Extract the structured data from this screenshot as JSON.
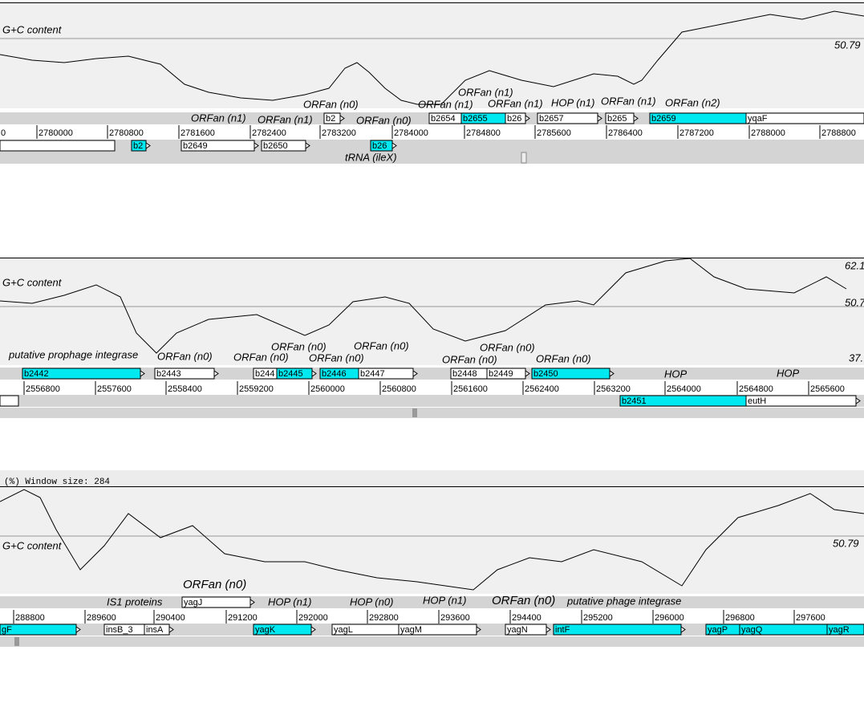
{
  "panels": [
    {
      "gc_label": "G+C content",
      "scale_labels": [
        "50.79"
      ],
      "annotations": [
        "ORFan (n1)",
        "ORFan (n1)",
        "ORFan (n0)",
        "ORFan (n0)",
        "ORFan (n1)",
        "ORFan (n1)",
        "ORFan (n1)",
        "HOP (n1)",
        "ORFan (n1)",
        "ORFan (n2)"
      ],
      "ruler": [
        "0",
        "2780000",
        "2780800",
        "2781600",
        "2782400",
        "2783200",
        "2784000",
        "2784800",
        "2785600",
        "2786400",
        "2787200",
        "2788000",
        "2788800"
      ],
      "genes_top": [
        "b2",
        "b2654",
        "b2655",
        "b26",
        "b2657",
        "b265",
        "b2659",
        "yqaF"
      ],
      "genes_bottom": [
        "b2",
        "b2649",
        "b2650",
        "b26"
      ],
      "track_label": "tRNA (ileX)"
    },
    {
      "gc_label": "G+C content",
      "scale_labels": [
        "62.1",
        "50.7",
        "37."
      ],
      "annotations": [
        "putative prophage integrase",
        "ORFan (n0)",
        "ORFan (n0)",
        "ORFan (n0)",
        "ORFan (n0)",
        "ORFan (n0)",
        "ORFan (n0)",
        "ORFan (n0)",
        "ORFan (n0)",
        "HOP",
        "HOP"
      ],
      "ruler": [
        "2556800",
        "2557600",
        "2558400",
        "2559200",
        "2560000",
        "2560800",
        "2561600",
        "2562400",
        "2563200",
        "2564000",
        "2564800",
        "2565600"
      ],
      "genes_top": [
        "b2442",
        "b2443",
        "b244",
        "b2445",
        "b2446",
        "b2447",
        "b2448",
        "b2449",
        "b2450"
      ],
      "genes_bottom": [
        "b2451",
        "eutH"
      ]
    },
    {
      "window_label": "(%)  Window size: 284",
      "gc_label": "G+C content",
      "scale_labels": [
        "50.79"
      ],
      "annotations": [
        "ORFan (n0)",
        "IS1 proteins",
        "HOP (n1)",
        "HOP (n0)",
        "HOP (n1)",
        "ORFan (n0)",
        "putative phage integrase"
      ],
      "ruler": [
        "288800",
        "289600",
        "290400",
        "291200",
        "292000",
        "292800",
        "293600",
        "294400",
        "295200",
        "296000",
        "296800",
        "297600"
      ],
      "genes_top": [
        "yagJ"
      ],
      "genes_bottom": [
        "gF",
        "insB_3",
        "insA",
        "yagK",
        "yagL",
        "yagM",
        "yagN",
        "intF",
        "yagP",
        "yagQ",
        "yagR"
      ]
    }
  ]
}
